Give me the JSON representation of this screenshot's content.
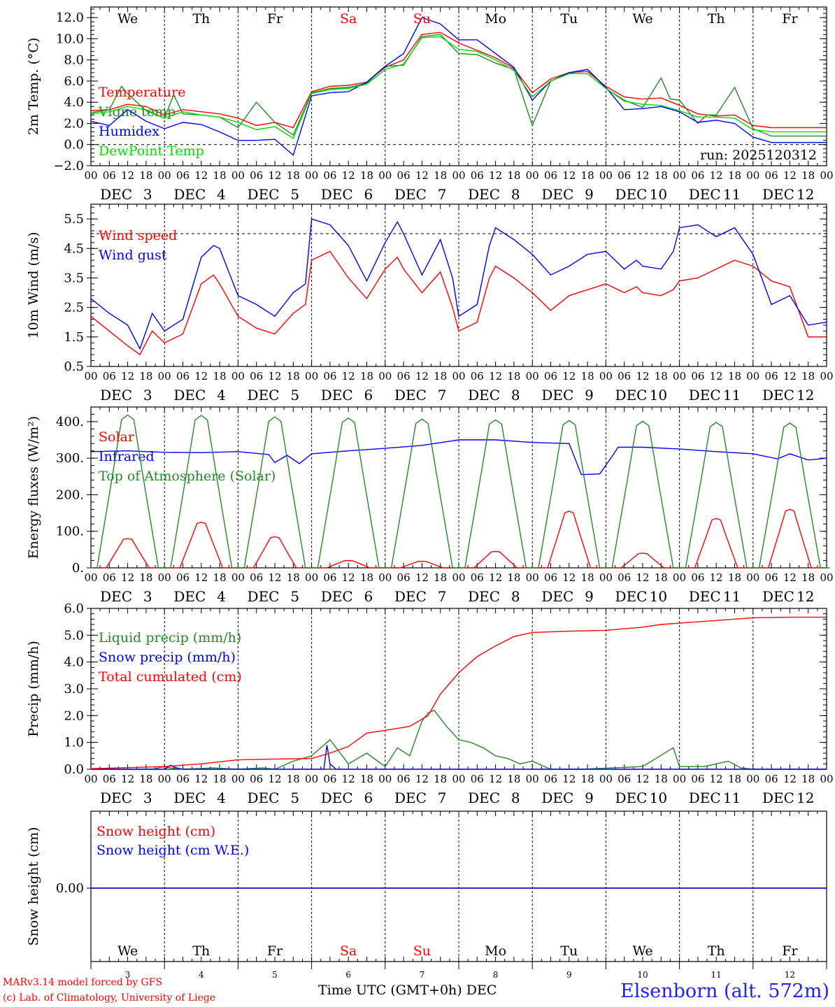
{
  "days": [
    {
      "name": "We",
      "num": "3",
      "color": "#000000"
    },
    {
      "name": "Th",
      "num": "4",
      "color": "#000000"
    },
    {
      "name": "Fr",
      "num": "5",
      "color": "#000000"
    },
    {
      "name": "Sa",
      "num": "6",
      "color": "#ff0000"
    },
    {
      "name": "Su",
      "num": "7",
      "color": "#ff0000"
    },
    {
      "name": "Mo",
      "num": "8",
      "color": "#000000"
    },
    {
      "name": "Tu",
      "num": "9",
      "color": "#000000"
    },
    {
      "name": "We",
      "num": "10",
      "color": "#000000"
    },
    {
      "name": "Th",
      "num": "11",
      "color": "#000000"
    },
    {
      "name": "Fr",
      "num": "12",
      "color": "#000000"
    }
  ],
  "month": "DEC",
  "hour_ticks": [
    "00",
    "06",
    "12",
    "18"
  ],
  "run_label": "run: 2025120312",
  "footer": {
    "credit_line1": "MARv3.14 model forced by GFS",
    "credit_line2": "(c) Lab. of Climatology, University of Liege",
    "axis_title": "Time UTC (GMT+0h)",
    "month": "DEC",
    "station": "Elsenborn (alt. 572m)"
  },
  "chart_data": [
    {
      "type": "line",
      "ylabel": "2m Temp. (°C)",
      "ylim": [
        -2,
        13
      ],
      "yticks": [
        -2,
        0,
        2,
        4,
        6,
        8,
        10,
        12
      ],
      "yticklabels": [
        "−2.0",
        "0.0",
        "2.0",
        "4.0",
        "6.0",
        "8.0",
        "10.0",
        "12.0"
      ],
      "dashed_ref": 0,
      "x_unit": "hours since DEC 3 00 UTC",
      "series": [
        {
          "name": "Temperature",
          "color": "#ff0000",
          "x": [
            0,
            6,
            12,
            18,
            24,
            30,
            36,
            42,
            48,
            54,
            60,
            66,
            72,
            78,
            84,
            90,
            96,
            102,
            108,
            114,
            120,
            126,
            132,
            138,
            144,
            150,
            156,
            162,
            168,
            174,
            180,
            186,
            192,
            198,
            204,
            210,
            216,
            222,
            228,
            234,
            240
          ],
          "y": [
            3.2,
            3.3,
            3.8,
            3.6,
            2.8,
            3.3,
            3.1,
            2.9,
            2.5,
            1.8,
            2.1,
            1.6,
            5.0,
            5.5,
            5.6,
            5.9,
            7.3,
            8.0,
            10.4,
            10.6,
            9.6,
            8.9,
            8.2,
            7.2,
            4.9,
            6.2,
            6.8,
            6.9,
            5.5,
            4.5,
            4.3,
            4.4,
            3.7,
            2.9,
            2.7,
            2.8,
            1.8,
            1.6,
            1.6,
            1.6,
            1.6
          ]
        },
        {
          "name": "Vigne temp",
          "color": "#228b22",
          "x": [
            0,
            6,
            10,
            12,
            18,
            24,
            27,
            30,
            36,
            42,
            48,
            54,
            60,
            66,
            72,
            78,
            84,
            90,
            96,
            102,
            108,
            114,
            120,
            126,
            132,
            138,
            144,
            150,
            156,
            162,
            168,
            174,
            180,
            186,
            189,
            192,
            198,
            201,
            204,
            210,
            216,
            222,
            228,
            234,
            240
          ],
          "y": [
            3.0,
            3.3,
            5.5,
            4.8,
            3.2,
            2.5,
            4.7,
            2.9,
            2.8,
            2.6,
            1.6,
            4.0,
            2.1,
            0.9,
            4.9,
            5.3,
            5.4,
            5.8,
            7.4,
            7.5,
            10.2,
            10.4,
            8.6,
            8.5,
            7.7,
            7.1,
            1.8,
            6.0,
            6.7,
            7.1,
            5.3,
            4.2,
            3.5,
            6.3,
            4.3,
            4.2,
            2.0,
            2.8,
            2.8,
            5.4,
            1.5,
            0.8,
            0.8,
            0.8,
            0.8
          ]
        },
        {
          "name": "Humidex",
          "color": "#0000ff",
          "x": [
            0,
            6,
            12,
            18,
            24,
            30,
            36,
            42,
            48,
            54,
            60,
            66,
            72,
            78,
            84,
            90,
            96,
            102,
            108,
            114,
            120,
            126,
            132,
            138,
            144,
            150,
            156,
            162,
            168,
            174,
            180,
            186,
            192,
            198,
            204,
            210,
            216,
            222,
            228,
            234,
            240
          ],
          "y": [
            2.2,
            1.8,
            3.3,
            2.2,
            1.5,
            2.1,
            1.9,
            1.2,
            0.4,
            0.4,
            0.5,
            -1.0,
            4.6,
            4.9,
            5.0,
            5.9,
            7.4,
            8.6,
            12.0,
            11.4,
            9.9,
            9.9,
            8.6,
            7.3,
            4.2,
            6.0,
            6.8,
            7.1,
            5.4,
            3.3,
            3.4,
            3.6,
            3.1,
            2.1,
            2.3,
            2.0,
            0.7,
            0.2,
            0.2,
            0.2,
            0.2
          ]
        },
        {
          "name": "DewPoint Temp",
          "color": "#00dd00",
          "x": [
            0,
            6,
            12,
            18,
            24,
            30,
            36,
            42,
            48,
            54,
            60,
            66,
            72,
            78,
            84,
            90,
            96,
            102,
            108,
            114,
            120,
            126,
            132,
            138,
            144,
            150,
            156,
            162,
            168,
            174,
            180,
            186,
            192,
            198,
            204,
            210,
            216,
            222,
            228,
            234,
            240
          ],
          "y": [
            2.9,
            3.1,
            3.6,
            3.3,
            2.5,
            3.1,
            2.8,
            2.6,
            2.1,
            1.4,
            1.7,
            0.6,
            4.8,
            5.2,
            5.3,
            5.7,
            7.1,
            7.6,
            10.1,
            10.2,
            9.0,
            8.8,
            8.0,
            7.0,
            4.5,
            6.0,
            6.7,
            6.7,
            5.3,
            4.1,
            3.8,
            3.7,
            3.2,
            2.6,
            2.6,
            2.5,
            1.4,
            1.2,
            1.2,
            1.2,
            1.2
          ]
        }
      ]
    },
    {
      "type": "line",
      "ylabel": "10m Wind (m/s)",
      "ylim": [
        0.5,
        6.0
      ],
      "yticks": [
        0.5,
        1.5,
        2.5,
        3.5,
        4.5,
        5.5
      ],
      "yticklabels": [
        "0.5",
        "1.5",
        "2.5",
        "3.5",
        "4.5",
        "5.5"
      ],
      "dashed_ref": 5.0,
      "x_unit": "hours since DEC 3 00 UTC",
      "series": [
        {
          "name": "Wind speed",
          "color": "#ff0000",
          "x": [
            0,
            6,
            12,
            16,
            20,
            24,
            30,
            36,
            40,
            42,
            48,
            54,
            60,
            66,
            70,
            72,
            78,
            84,
            90,
            96,
            100,
            102,
            108,
            114,
            118,
            120,
            126,
            130,
            132,
            138,
            144,
            150,
            156,
            162,
            168,
            174,
            178,
            180,
            186,
            190,
            192,
            198,
            204,
            210,
            216,
            222,
            228,
            234,
            240
          ],
          "y": [
            2.2,
            1.7,
            1.2,
            0.9,
            1.7,
            1.3,
            1.6,
            3.3,
            3.6,
            3.3,
            2.2,
            1.8,
            1.6,
            2.3,
            2.6,
            4.1,
            4.4,
            3.5,
            2.8,
            3.8,
            4.2,
            3.8,
            3.0,
            3.7,
            2.5,
            1.7,
            2.0,
            3.5,
            3.9,
            3.5,
            3.0,
            2.4,
            2.9,
            3.1,
            3.3,
            3.0,
            3.2,
            3.0,
            2.9,
            3.1,
            3.4,
            3.5,
            3.8,
            4.1,
            3.9,
            3.4,
            3.2,
            1.5,
            1.5
          ]
        },
        {
          "name": "Wind gust",
          "color": "#0000ff",
          "x": [
            0,
            6,
            12,
            16,
            20,
            24,
            30,
            36,
            40,
            42,
            48,
            54,
            60,
            66,
            70,
            72,
            78,
            84,
            90,
            96,
            100,
            102,
            108,
            114,
            118,
            120,
            126,
            130,
            132,
            138,
            144,
            150,
            156,
            162,
            168,
            174,
            178,
            180,
            186,
            190,
            192,
            198,
            204,
            210,
            216,
            222,
            228,
            234,
            240
          ],
          "y": [
            2.8,
            2.3,
            1.9,
            1.1,
            2.3,
            1.7,
            2.1,
            4.2,
            4.6,
            4.5,
            2.9,
            2.6,
            2.2,
            3.0,
            3.3,
            5.5,
            5.3,
            4.6,
            3.4,
            4.7,
            5.4,
            5.0,
            3.6,
            4.8,
            3.5,
            2.2,
            2.6,
            4.6,
            5.2,
            4.8,
            4.3,
            3.6,
            3.9,
            4.3,
            4.4,
            3.8,
            4.1,
            3.9,
            3.8,
            4.4,
            5.2,
            5.3,
            4.9,
            5.2,
            4.3,
            2.6,
            2.9,
            1.9,
            2.0
          ]
        }
      ]
    },
    {
      "type": "line",
      "ylabel": "Energy fluxes (W/m²)",
      "ylim": [
        0,
        440
      ],
      "yticks": [
        0,
        100,
        200,
        300,
        400
      ],
      "yticklabels": [
        "0.",
        "100.",
        "200.",
        "300.",
        "400."
      ],
      "x_unit": "hours since DEC 3 00 UTC",
      "series": [
        {
          "name": "Solar",
          "color": "#ff0000",
          "peaks": [
            [
              12,
              80
            ],
            [
              36,
              125
            ],
            [
              60,
              85
            ],
            [
              84,
              20
            ],
            [
              108,
              18
            ],
            [
              132,
              45
            ],
            [
              156,
              155
            ],
            [
              180,
              40
            ],
            [
              204,
              135
            ],
            [
              228,
              160
            ]
          ],
          "halfwidth": 7
        },
        {
          "name": "Infrared",
          "color": "#0000ff",
          "x": [
            0,
            12,
            24,
            36,
            48,
            58,
            60,
            64,
            68,
            72,
            84,
            96,
            108,
            120,
            132,
            144,
            156,
            160,
            166,
            170,
            172,
            180,
            192,
            204,
            216,
            224,
            228,
            234,
            240
          ],
          "y": [
            318,
            320,
            316,
            315,
            318,
            310,
            288,
            308,
            285,
            312,
            320,
            327,
            335,
            350,
            350,
            343,
            340,
            255,
            257,
            305,
            330,
            330,
            325,
            318,
            312,
            298,
            312,
            295,
            300
          ]
        },
        {
          "name": "Top of Atmosphere (Solar)",
          "color": "#228b22",
          "peaks": [
            [
              12,
              418
            ],
            [
              36,
              417
            ],
            [
              60,
              413
            ],
            [
              84,
              410
            ],
            [
              108,
              407
            ],
            [
              132,
              405
            ],
            [
              156,
              403
            ],
            [
              180,
              401
            ],
            [
              204,
              398
            ],
            [
              228,
              396
            ]
          ],
          "halfwidth": 10
        }
      ]
    },
    {
      "type": "line",
      "ylabel": "Precip (mm/h)",
      "ylim": [
        0,
        6
      ],
      "yticks": [
        0,
        1,
        2,
        3,
        4,
        5,
        6
      ],
      "yticklabels": [
        "0.0",
        "1.0",
        "2.0",
        "3.0",
        "4.0",
        "5.0",
        "6.0"
      ],
      "x_unit": "hours since DEC 3 00 UTC",
      "series": [
        {
          "name": "Liquid precip (mm/h)",
          "color": "#228b22",
          "x": [
            0,
            20,
            24,
            26,
            30,
            40,
            48,
            56,
            60,
            66,
            72,
            78,
            84,
            90,
            96,
            100,
            104,
            108,
            110,
            112,
            116,
            120,
            124,
            128,
            132,
            136,
            140,
            144,
            150,
            160,
            180,
            190,
            192,
            200,
            204,
            208,
            212,
            216,
            240
          ],
          "y": [
            0,
            0,
            0.1,
            0.05,
            0,
            0.05,
            0,
            0.05,
            0,
            0.3,
            0.5,
            1.1,
            0.2,
            0.6,
            0.1,
            0.8,
            0.5,
            1.8,
            2.1,
            2.2,
            1.6,
            1.1,
            1.0,
            0.8,
            0.5,
            0.4,
            0.2,
            0.3,
            0,
            0,
            0.1,
            0.8,
            0.1,
            0.1,
            0.2,
            0.3,
            0.05,
            0,
            0
          ]
        },
        {
          "name": "Snow precip (mm/h)",
          "color": "#0000ff",
          "x": [
            0,
            24,
            26,
            28,
            30,
            76,
            77,
            78,
            80,
            240
          ],
          "y": [
            0,
            0,
            0.15,
            0.05,
            0,
            0,
            0.9,
            0.2,
            0,
            0
          ]
        },
        {
          "name": "Total cumulated (cm)",
          "color": "#ff0000",
          "x": [
            0,
            24,
            36,
            48,
            60,
            72,
            78,
            84,
            90,
            96,
            104,
            110,
            114,
            120,
            126,
            132,
            138,
            144,
            156,
            168,
            180,
            186,
            192,
            204,
            216,
            228,
            240
          ],
          "y": [
            0.02,
            0.1,
            0.2,
            0.35,
            0.38,
            0.4,
            0.6,
            0.85,
            1.35,
            1.45,
            1.6,
            2.0,
            2.8,
            3.6,
            4.2,
            4.6,
            4.95,
            5.1,
            5.15,
            5.18,
            5.3,
            5.4,
            5.45,
            5.55,
            5.65,
            5.67,
            5.67
          ]
        }
      ]
    },
    {
      "type": "line",
      "ylabel": "Snow height (cm)",
      "ytick": "0.00",
      "series": [
        {
          "name": "Snow height (cm)",
          "color": "#ff0000",
          "x": [
            0,
            240
          ],
          "y": [
            0,
            0
          ]
        },
        {
          "name": "Snow height (cm W.E.)",
          "color": "#0000ff",
          "x": [
            0,
            240
          ],
          "y": [
            0,
            0
          ]
        }
      ]
    }
  ]
}
